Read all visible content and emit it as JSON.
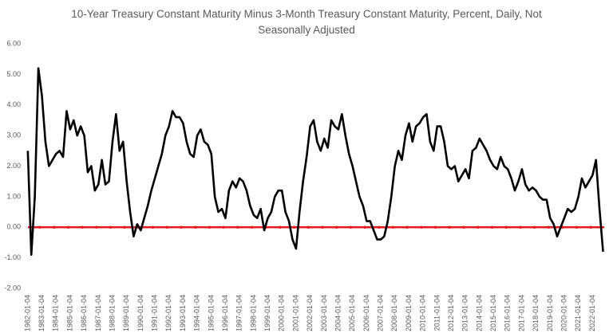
{
  "chart_data": {
    "type": "line",
    "title": "10-Year Treasury Constant Maturity Minus 3-Month Treasury Constant Maturity, Percent, Daily, Not Seasonally Adjusted",
    "x": [
      "1982-01-01",
      "1982-04-01",
      "1982-07-01",
      "1982-10-01",
      "1983-01-01",
      "1983-04-01",
      "1983-07-01",
      "1983-10-01",
      "1984-01-01",
      "1984-04-01",
      "1984-07-01",
      "1984-10-01",
      "1985-01-01",
      "1985-04-01",
      "1985-07-01",
      "1985-10-01",
      "1986-01-01",
      "1986-04-01",
      "1986-07-01",
      "1986-10-01",
      "1987-01-01",
      "1987-04-01",
      "1987-07-01",
      "1987-10-01",
      "1988-01-01",
      "1988-04-01",
      "1988-07-01",
      "1988-10-01",
      "1989-01-01",
      "1989-04-01",
      "1989-07-01",
      "1989-10-01",
      "1990-01-01",
      "1990-04-01",
      "1990-07-01",
      "1990-10-01",
      "1991-01-01",
      "1991-04-01",
      "1991-07-01",
      "1991-10-01",
      "1992-01-01",
      "1992-04-01",
      "1992-07-01",
      "1992-10-01",
      "1993-01-01",
      "1993-04-01",
      "1993-07-01",
      "1993-10-01",
      "1994-01-01",
      "1994-04-01",
      "1994-07-01",
      "1994-10-01",
      "1995-01-01",
      "1995-04-01",
      "1995-07-01",
      "1995-10-01",
      "1996-01-01",
      "1996-04-01",
      "1996-07-01",
      "1996-10-01",
      "1997-01-01",
      "1997-04-01",
      "1997-07-01",
      "1997-10-01",
      "1998-01-01",
      "1998-04-01",
      "1998-07-01",
      "1998-10-01",
      "1999-01-01",
      "1999-04-01",
      "1999-07-01",
      "1999-10-01",
      "2000-01-01",
      "2000-04-01",
      "2000-07-01",
      "2000-10-01",
      "2001-01-01",
      "2001-04-01",
      "2001-07-01",
      "2001-10-01",
      "2002-01-01",
      "2002-04-01",
      "2002-07-01",
      "2002-10-01",
      "2003-01-01",
      "2003-04-01",
      "2003-07-01",
      "2003-10-01",
      "2004-01-01",
      "2004-04-01",
      "2004-07-01",
      "2004-10-01",
      "2005-01-01",
      "2005-04-01",
      "2005-07-01",
      "2005-10-01",
      "2006-01-01",
      "2006-04-01",
      "2006-07-01",
      "2006-10-01",
      "2007-01-01",
      "2007-04-01",
      "2007-07-01",
      "2007-10-01",
      "2008-01-01",
      "2008-04-01",
      "2008-07-01",
      "2008-10-01",
      "2009-01-01",
      "2009-04-01",
      "2009-07-01",
      "2009-10-01",
      "2010-01-01",
      "2010-04-01",
      "2010-07-01",
      "2010-10-01",
      "2011-01-01",
      "2011-04-01",
      "2011-07-01",
      "2011-10-01",
      "2012-01-01",
      "2012-04-01",
      "2012-07-01",
      "2012-10-01",
      "2013-01-01",
      "2013-04-01",
      "2013-07-01",
      "2013-10-01",
      "2014-01-01",
      "2014-04-01",
      "2014-07-01",
      "2014-10-01",
      "2015-01-01",
      "2015-04-01",
      "2015-07-01",
      "2015-10-01",
      "2016-01-01",
      "2016-04-01",
      "2016-07-01",
      "2016-10-01",
      "2017-01-01",
      "2017-04-01",
      "2017-07-01",
      "2017-10-01",
      "2018-01-01",
      "2018-04-01",
      "2018-07-01",
      "2018-10-01",
      "2019-01-01",
      "2019-04-01",
      "2019-07-01",
      "2019-10-01",
      "2020-01-01",
      "2020-04-01",
      "2020-07-01",
      "2020-10-01",
      "2021-01-01",
      "2021-04-01",
      "2021-07-01",
      "2021-10-01",
      "2022-01-01",
      "2022-04-01",
      "2022-07-01",
      "2022-10-01"
    ],
    "series": [
      {
        "color": "#000000",
        "values": [
          2.5,
          -0.9,
          1.0,
          5.2,
          4.3,
          2.8,
          2.0,
          2.2,
          2.4,
          2.5,
          2.3,
          3.8,
          3.2,
          3.5,
          3.0,
          3.3,
          3.0,
          1.8,
          2.0,
          1.2,
          1.4,
          2.2,
          1.4,
          1.5,
          2.8,
          3.7,
          2.5,
          2.8,
          1.5,
          0.5,
          -0.3,
          0.1,
          -0.1,
          0.3,
          0.7,
          1.2,
          1.6,
          2.0,
          2.4,
          3.0,
          3.3,
          3.8,
          3.6,
          3.6,
          3.4,
          2.8,
          2.4,
          2.3,
          3.0,
          3.2,
          2.8,
          2.7,
          2.4,
          1.0,
          0.5,
          0.6,
          0.3,
          1.2,
          1.5,
          1.3,
          1.6,
          1.5,
          1.2,
          0.7,
          0.4,
          0.3,
          0.6,
          -0.1,
          0.3,
          0.5,
          1.0,
          1.2,
          1.2,
          0.5,
          0.2,
          -0.4,
          -0.7,
          0.5,
          1.5,
          2.3,
          3.3,
          3.5,
          2.8,
          2.5,
          2.9,
          2.6,
          3.5,
          3.3,
          3.2,
          3.7,
          3.0,
          2.4,
          2.0,
          1.5,
          1.0,
          0.7,
          0.2,
          0.2,
          -0.1,
          -0.4,
          -0.4,
          -0.3,
          0.2,
          1.0,
          2.0,
          2.5,
          2.2,
          3.0,
          3.4,
          2.8,
          3.3,
          3.4,
          3.6,
          3.7,
          2.8,
          2.5,
          3.3,
          3.3,
          2.8,
          2.0,
          1.9,
          2.0,
          1.5,
          1.7,
          1.9,
          1.6,
          2.5,
          2.6,
          2.9,
          2.7,
          2.5,
          2.2,
          2.0,
          1.9,
          2.3,
          2.0,
          1.9,
          1.6,
          1.2,
          1.5,
          1.9,
          1.4,
          1.2,
          1.3,
          1.2,
          1.0,
          0.9,
          0.9,
          0.3,
          0.1,
          -0.3,
          0.0,
          0.3,
          0.6,
          0.5,
          0.6,
          1.0,
          1.6,
          1.3,
          1.5,
          1.7,
          2.2,
          0.6,
          -0.8
        ]
      }
    ],
    "reference_line": {
      "value": 0,
      "color": "#e8191a"
    },
    "xlim": [
      "1982-01-04",
      "2022-10-31"
    ],
    "xticks": [
      "1982-01-04",
      "1983-01-04",
      "1984-01-04",
      "1985-01-04",
      "1986-01-04",
      "1987-01-04",
      "1988-01-04",
      "1989-01-04",
      "1990-01-04",
      "1991-01-04",
      "1992-01-04",
      "1993-01-04",
      "1994-01-04",
      "1995-01-04",
      "1996-01-04",
      "1997-01-04",
      "1998-01-04",
      "1999-01-04",
      "2000-01-04",
      "2001-01-04",
      "2002-01-04",
      "2003-01-04",
      "2004-01-04",
      "2005-01-04",
      "2006-01-04",
      "2007-01-04",
      "2008-01-04",
      "2009-01-04",
      "2010-01-04",
      "2011-01-04",
      "2012-01-04",
      "2013-01-04",
      "2014-01-04",
      "2015-01-04",
      "2016-01-04",
      "2017-01-04",
      "2018-01-04",
      "2019-01-04",
      "2020-01-04",
      "2021-01-04",
      "2022-01-04"
    ],
    "ylim": [
      -2,
      6
    ],
    "yticks": [
      {
        "value": -2,
        "label": "-2.00"
      },
      {
        "value": -1,
        "label": "-1.00"
      },
      {
        "value": 0,
        "label": "0.00"
      },
      {
        "value": 1,
        "label": "1.00"
      },
      {
        "value": 2,
        "label": "2.00"
      },
      {
        "value": 3,
        "label": "3.00"
      },
      {
        "value": 4,
        "label": "4.00"
      },
      {
        "value": 5,
        "label": "5.00"
      },
      {
        "value": 6,
        "label": "6.00"
      }
    ],
    "grid": false
  }
}
